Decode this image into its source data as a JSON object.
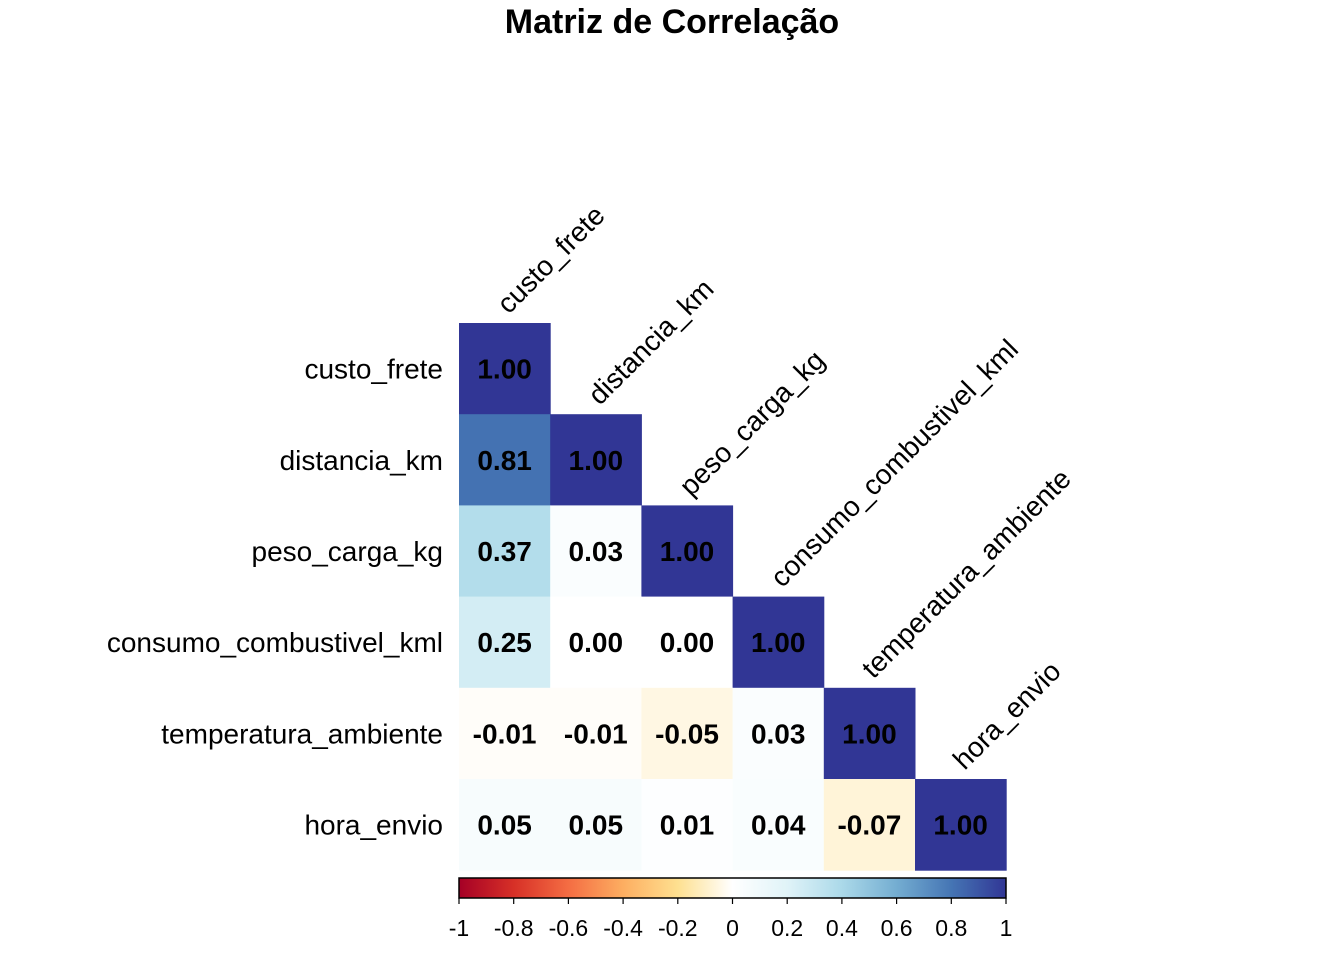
{
  "chart_data": {
    "type": "heatmap",
    "title": "Matriz de Correlação",
    "variables": [
      "custo_frete",
      "distancia_km",
      "peso_carga_kg",
      "consumo_combustivel_kml",
      "temperatura_ambiente",
      "hora_envio"
    ],
    "matrix": [
      [
        1.0
      ],
      [
        0.81,
        1.0
      ],
      [
        0.37,
        0.03,
        1.0
      ],
      [
        0.25,
        0.0,
        0.0,
        1.0
      ],
      [
        -0.01,
        -0.01,
        -0.05,
        0.03,
        1.0
      ],
      [
        0.05,
        0.05,
        0.01,
        0.04,
        -0.07,
        1.0
      ]
    ],
    "value_labels": [
      [
        "1.00"
      ],
      [
        "0.81",
        "1.00"
      ],
      [
        "0.37",
        "0.03",
        "1.00"
      ],
      [
        "0.25",
        "0.00",
        "0.00",
        "1.00"
      ],
      [
        "-0.01",
        "-0.01",
        "-0.05",
        "0.03",
        "1.00"
      ],
      [
        "0.05",
        "0.05",
        "0.01",
        "0.04",
        "-0.07",
        "1.00"
      ]
    ],
    "layout": "lower-triangle",
    "colorbar": {
      "range": [
        -1,
        1
      ],
      "tick_labels": [
        "-1",
        "-0.8",
        "-0.6",
        "-0.4",
        "-0.2",
        "0",
        "0.2",
        "0.4",
        "0.6",
        "0.8",
        "1"
      ],
      "tick_values": [
        -1,
        -0.8,
        -0.6,
        -0.4,
        -0.2,
        0,
        0.2,
        0.4,
        0.6,
        0.8,
        1
      ],
      "placement": "bottom"
    },
    "colors": {
      "-1": "#a50026",
      "-0.8": "#d73027",
      "-0.6": "#f46d43",
      "-0.4": "#fdae61",
      "-0.2": "#fee090",
      "0": "#ffffff",
      "0.2": "#e0f3f8",
      "0.4": "#abd9e9",
      "0.6": "#74add1",
      "0.8": "#4575b4",
      "1": "#313695"
    }
  }
}
